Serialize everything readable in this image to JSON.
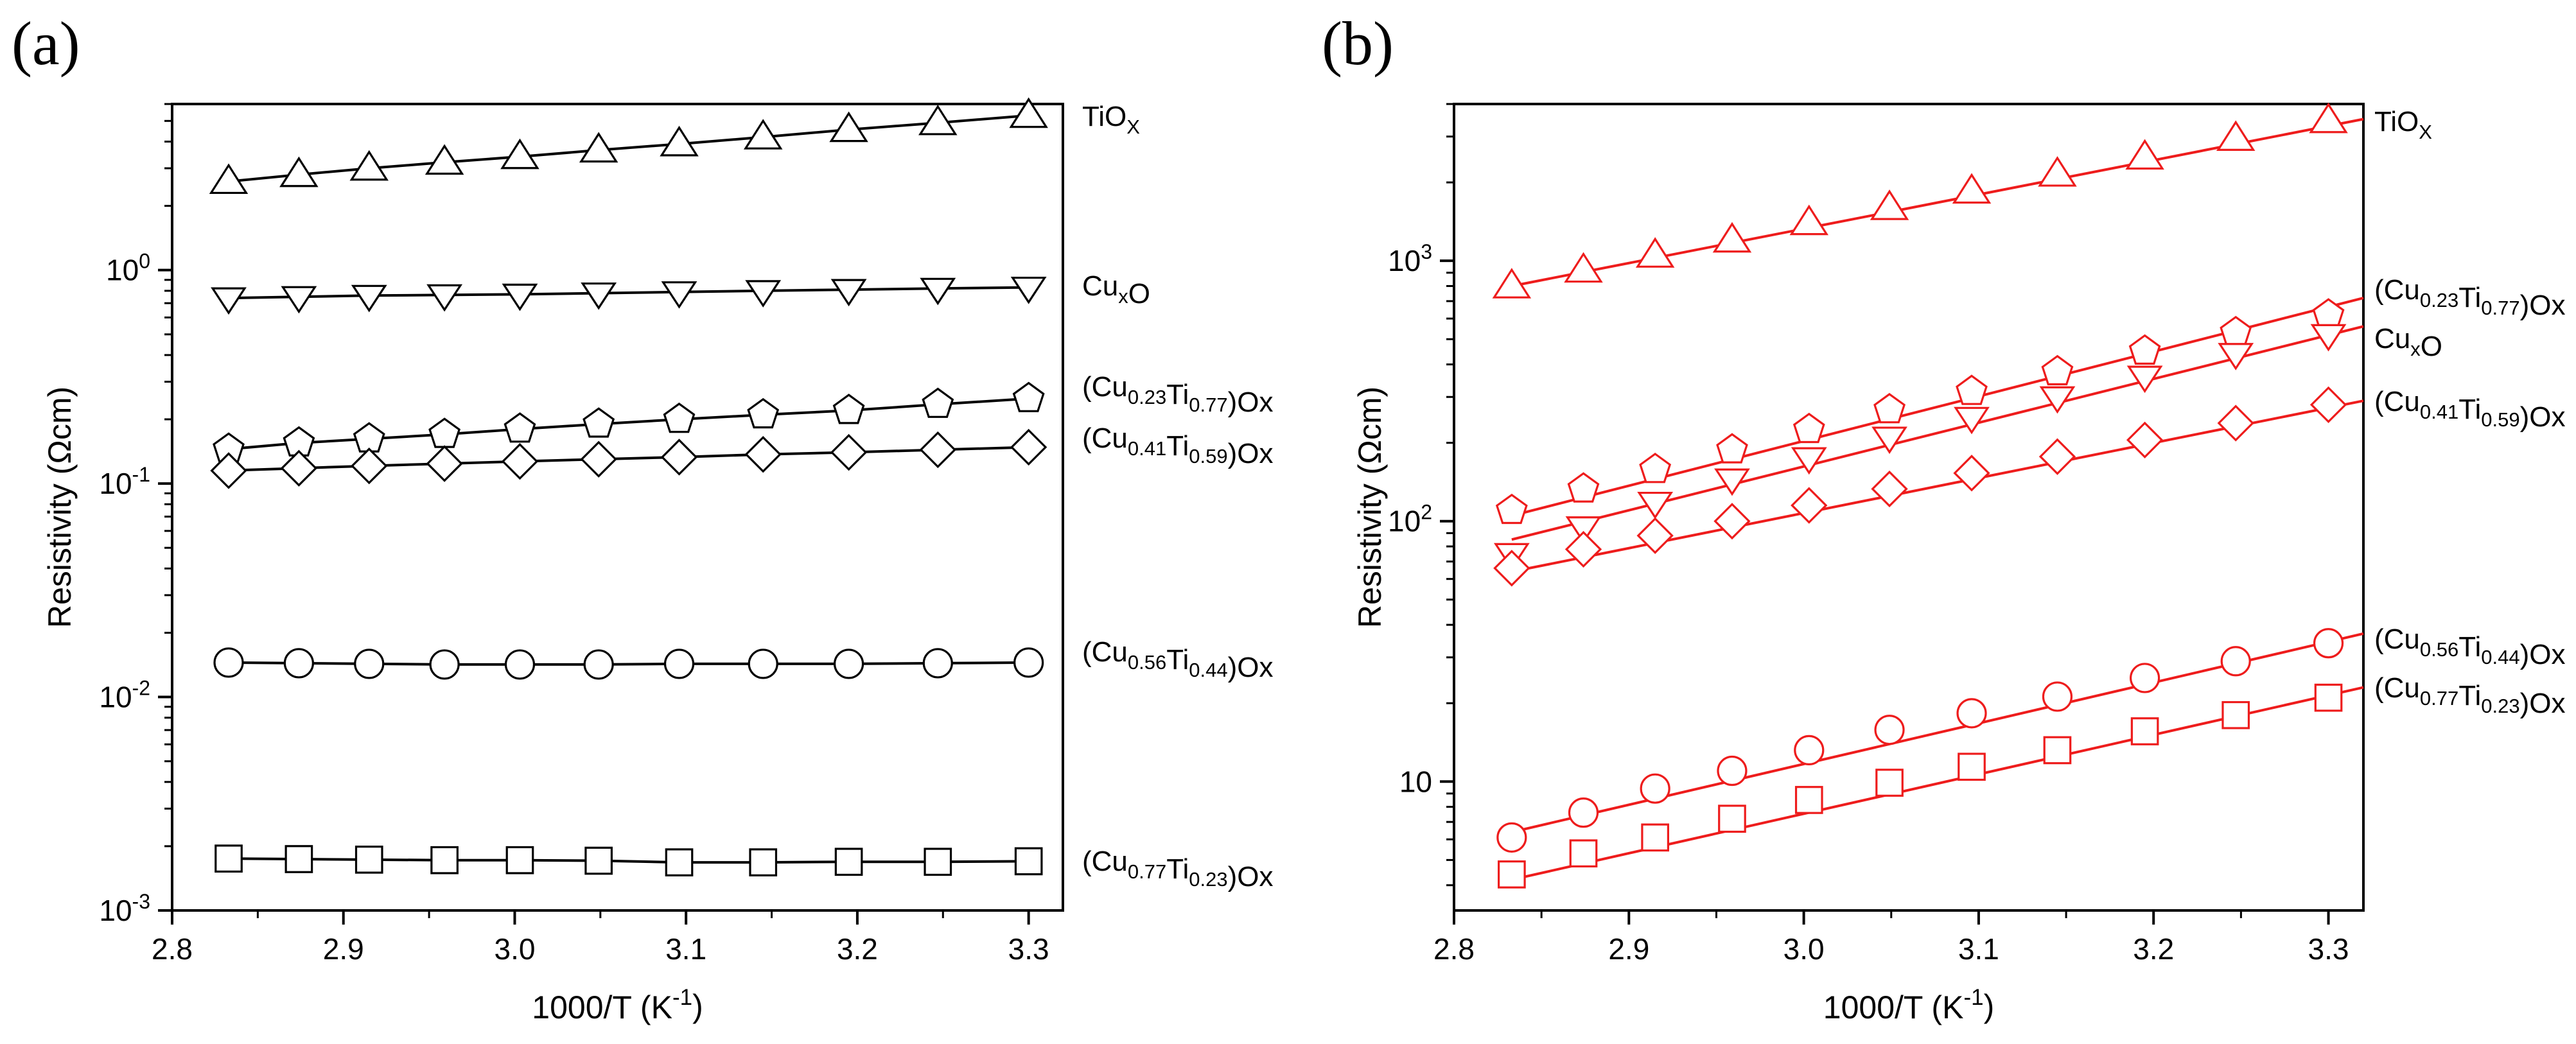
{
  "figure_caption": "",
  "chart_data": [
    {
      "type": "scatter",
      "panel_label": "(a)",
      "title": "",
      "xlabel": "1000/T (K",
      "xlabel_sup": "-1",
      "xlabel_close": ")",
      "ylabel": "Resistivity (Ωcm)",
      "yscale": "log",
      "xlim": [
        2.8,
        3.32
      ],
      "ylim": [
        0.001,
        6.0
      ],
      "x_ticks": [
        2.8,
        2.9,
        3.0,
        3.1,
        3.2,
        3.3
      ],
      "x_tick_labels": [
        "2.8",
        "2.9",
        "3.0",
        "3.1",
        "3.2",
        "3.3"
      ],
      "y_ticks": [
        {
          "value": 0.001,
          "base": "10",
          "exp": "-3"
        },
        {
          "value": 0.01,
          "base": "10",
          "exp": "-2"
        },
        {
          "value": 0.1,
          "base": "10",
          "exp": "-1"
        },
        {
          "value": 1,
          "base": "10",
          "exp": "0"
        }
      ],
      "line_color": "#000000",
      "fill_color": "#ffffff",
      "fit_lines": false,
      "x": [
        2.833,
        2.874,
        2.915,
        2.959,
        3.003,
        3.049,
        3.096,
        3.145,
        3.195,
        3.247,
        3.3
      ],
      "series": [
        {
          "name": "TiOX",
          "parts": [
            {
              "t": "TiO"
            },
            {
              "t": "X",
              "sub": true
            }
          ],
          "marker": "triangle-up",
          "values": [
            2.6,
            2.8,
            3.0,
            3.2,
            3.4,
            3.65,
            3.9,
            4.2,
            4.55,
            4.9,
            5.3
          ]
        },
        {
          "name": "CuxO",
          "parts": [
            {
              "t": "Cu"
            },
            {
              "t": "x",
              "sub": true
            },
            {
              "t": "O"
            }
          ],
          "marker": "triangle-down",
          "values": [
            0.74,
            0.75,
            0.76,
            0.765,
            0.77,
            0.78,
            0.79,
            0.8,
            0.81,
            0.82,
            0.83
          ]
        },
        {
          "name": "(Cu0.23Ti0.77)Ox",
          "parts": [
            {
              "t": "(Cu"
            },
            {
              "t": "0.23",
              "sub": true
            },
            {
              "t": "Ti"
            },
            {
              "t": "0.77",
              "sub": true
            },
            {
              "t": ")Ox"
            }
          ],
          "marker": "pentagon",
          "values": [
            0.145,
            0.155,
            0.162,
            0.17,
            0.18,
            0.19,
            0.2,
            0.21,
            0.22,
            0.235,
            0.25
          ]
        },
        {
          "name": "(Cu0.41Ti0.59)Ox",
          "parts": [
            {
              "t": "(Cu"
            },
            {
              "t": "0.41",
              "sub": true
            },
            {
              "t": "Ti"
            },
            {
              "t": "0.59",
              "sub": true
            },
            {
              "t": ")Ox"
            }
          ],
          "marker": "diamond",
          "values": [
            0.115,
            0.118,
            0.121,
            0.124,
            0.127,
            0.13,
            0.133,
            0.137,
            0.14,
            0.144,
            0.148
          ]
        },
        {
          "name": "(Cu0.56Ti0.44)Ox",
          "parts": [
            {
              "t": "(Cu"
            },
            {
              "t": "0.56",
              "sub": true
            },
            {
              "t": "Ti"
            },
            {
              "t": "0.44",
              "sub": true
            },
            {
              "t": ")Ox"
            }
          ],
          "marker": "circle",
          "values": [
            0.0145,
            0.0144,
            0.0143,
            0.0142,
            0.0142,
            0.0142,
            0.0143,
            0.0143,
            0.0143,
            0.0144,
            0.0145
          ]
        },
        {
          "name": "(Cu0.77Ti0.23)Ox",
          "parts": [
            {
              "t": "(Cu"
            },
            {
              "t": "0.77",
              "sub": true
            },
            {
              "t": "Ti"
            },
            {
              "t": "0.23",
              "sub": true
            },
            {
              "t": ")Ox"
            }
          ],
          "marker": "square",
          "values": [
            0.00175,
            0.00174,
            0.00173,
            0.00172,
            0.00172,
            0.00171,
            0.00168,
            0.00168,
            0.00169,
            0.00169,
            0.0017
          ]
        }
      ]
    },
    {
      "type": "scatter",
      "panel_label": "(b)",
      "title": "",
      "xlabel": "1000/T (K",
      "xlabel_sup": "-1",
      "xlabel_close": ")",
      "ylabel": "Resistivity (Ωcm)",
      "yscale": "log",
      "xlim": [
        2.8,
        3.32
      ],
      "ylim": [
        3.2,
        4000
      ],
      "x_ticks": [
        2.8,
        2.9,
        3.0,
        3.1,
        3.2,
        3.3
      ],
      "x_tick_labels": [
        "2.8",
        "2.9",
        "3.0",
        "3.1",
        "3.2",
        "3.3"
      ],
      "y_ticks": [
        {
          "value": 10,
          "base": "10",
          "exp": ""
        },
        {
          "value": 100,
          "base": "10",
          "exp": "2"
        },
        {
          "value": 1000,
          "base": "10",
          "exp": "3"
        }
      ],
      "line_color": "#ee1c1c",
      "fill_color": "#ffffff",
      "fit_lines": true,
      "x": [
        2.833,
        2.874,
        2.915,
        2.959,
        3.003,
        3.049,
        3.096,
        3.145,
        3.195,
        3.247,
        3.3
      ],
      "series": [
        {
          "name": "TiOX",
          "parts": [
            {
              "t": "TiO"
            },
            {
              "t": "X",
              "sub": true
            }
          ],
          "marker": "triangle-up",
          "values": [
            800,
            920,
            1050,
            1200,
            1400,
            1600,
            1850,
            2150,
            2500,
            2950,
            3450
          ],
          "fit": [
            800,
            3500
          ]
        },
        {
          "name": "(Cu0.23Ti0.77)Ox",
          "parts": [
            {
              "t": "(Cu"
            },
            {
              "t": "0.23",
              "sub": true
            },
            {
              "t": "Ti"
            },
            {
              "t": "0.77",
              "sub": true
            },
            {
              "t": ")Ox"
            }
          ],
          "marker": "pentagon",
          "values": [
            110,
            133,
            158,
            188,
            225,
            268,
            315,
            375,
            450,
            530,
            620
          ],
          "fit": [
            105,
            720
          ]
        },
        {
          "name": "CuxO",
          "parts": [
            {
              "t": "Cu"
            },
            {
              "t": "x",
              "sub": true
            },
            {
              "t": "O"
            }
          ],
          "marker": "triangle-down",
          "values": [
            75,
            95,
            118,
            145,
            175,
            210,
            250,
            300,
            360,
            440,
            520
          ],
          "fit": [
            85,
            560
          ]
        },
        {
          "name": "(Cu0.41Ti0.59)Ox",
          "parts": [
            {
              "t": "(Cu"
            },
            {
              "t": "0.41",
              "sub": true
            },
            {
              "t": "Ti"
            },
            {
              "t": "0.59",
              "sub": true
            },
            {
              "t": ")Ox"
            }
          ],
          "marker": "diamond",
          "values": [
            66,
            78,
            88,
            100,
            115,
            133,
            153,
            177,
            205,
            238,
            280
          ],
          "fit": [
            64,
            290
          ]
        },
        {
          "name": "(Cu0.56Ti0.44)Ox",
          "parts": [
            {
              "t": "(Cu"
            },
            {
              "t": "0.56",
              "sub": true
            },
            {
              "t": "Ti"
            },
            {
              "t": "0.44",
              "sub": true
            },
            {
              "t": ")Ox"
            }
          ],
          "marker": "circle",
          "values": [
            6.1,
            7.6,
            9.4,
            11.0,
            13.2,
            15.8,
            18.3,
            21.2,
            25.0,
            29.0,
            34.0
          ],
          "fit": [
            6.4,
            37.0
          ]
        },
        {
          "name": "(Cu0.77Ti0.23)Ox",
          "parts": [
            {
              "t": "(Cu"
            },
            {
              "t": "0.77",
              "sub": true
            },
            {
              "t": "Ti"
            },
            {
              "t": "0.23",
              "sub": true
            },
            {
              "t": ")Ox"
            }
          ],
          "marker": "square",
          "values": [
            4.4,
            5.3,
            6.1,
            7.2,
            8.5,
            9.9,
            11.4,
            13.2,
            15.6,
            18.0,
            21.0
          ],
          "fit": [
            4.2,
            23.0
          ]
        }
      ]
    }
  ]
}
